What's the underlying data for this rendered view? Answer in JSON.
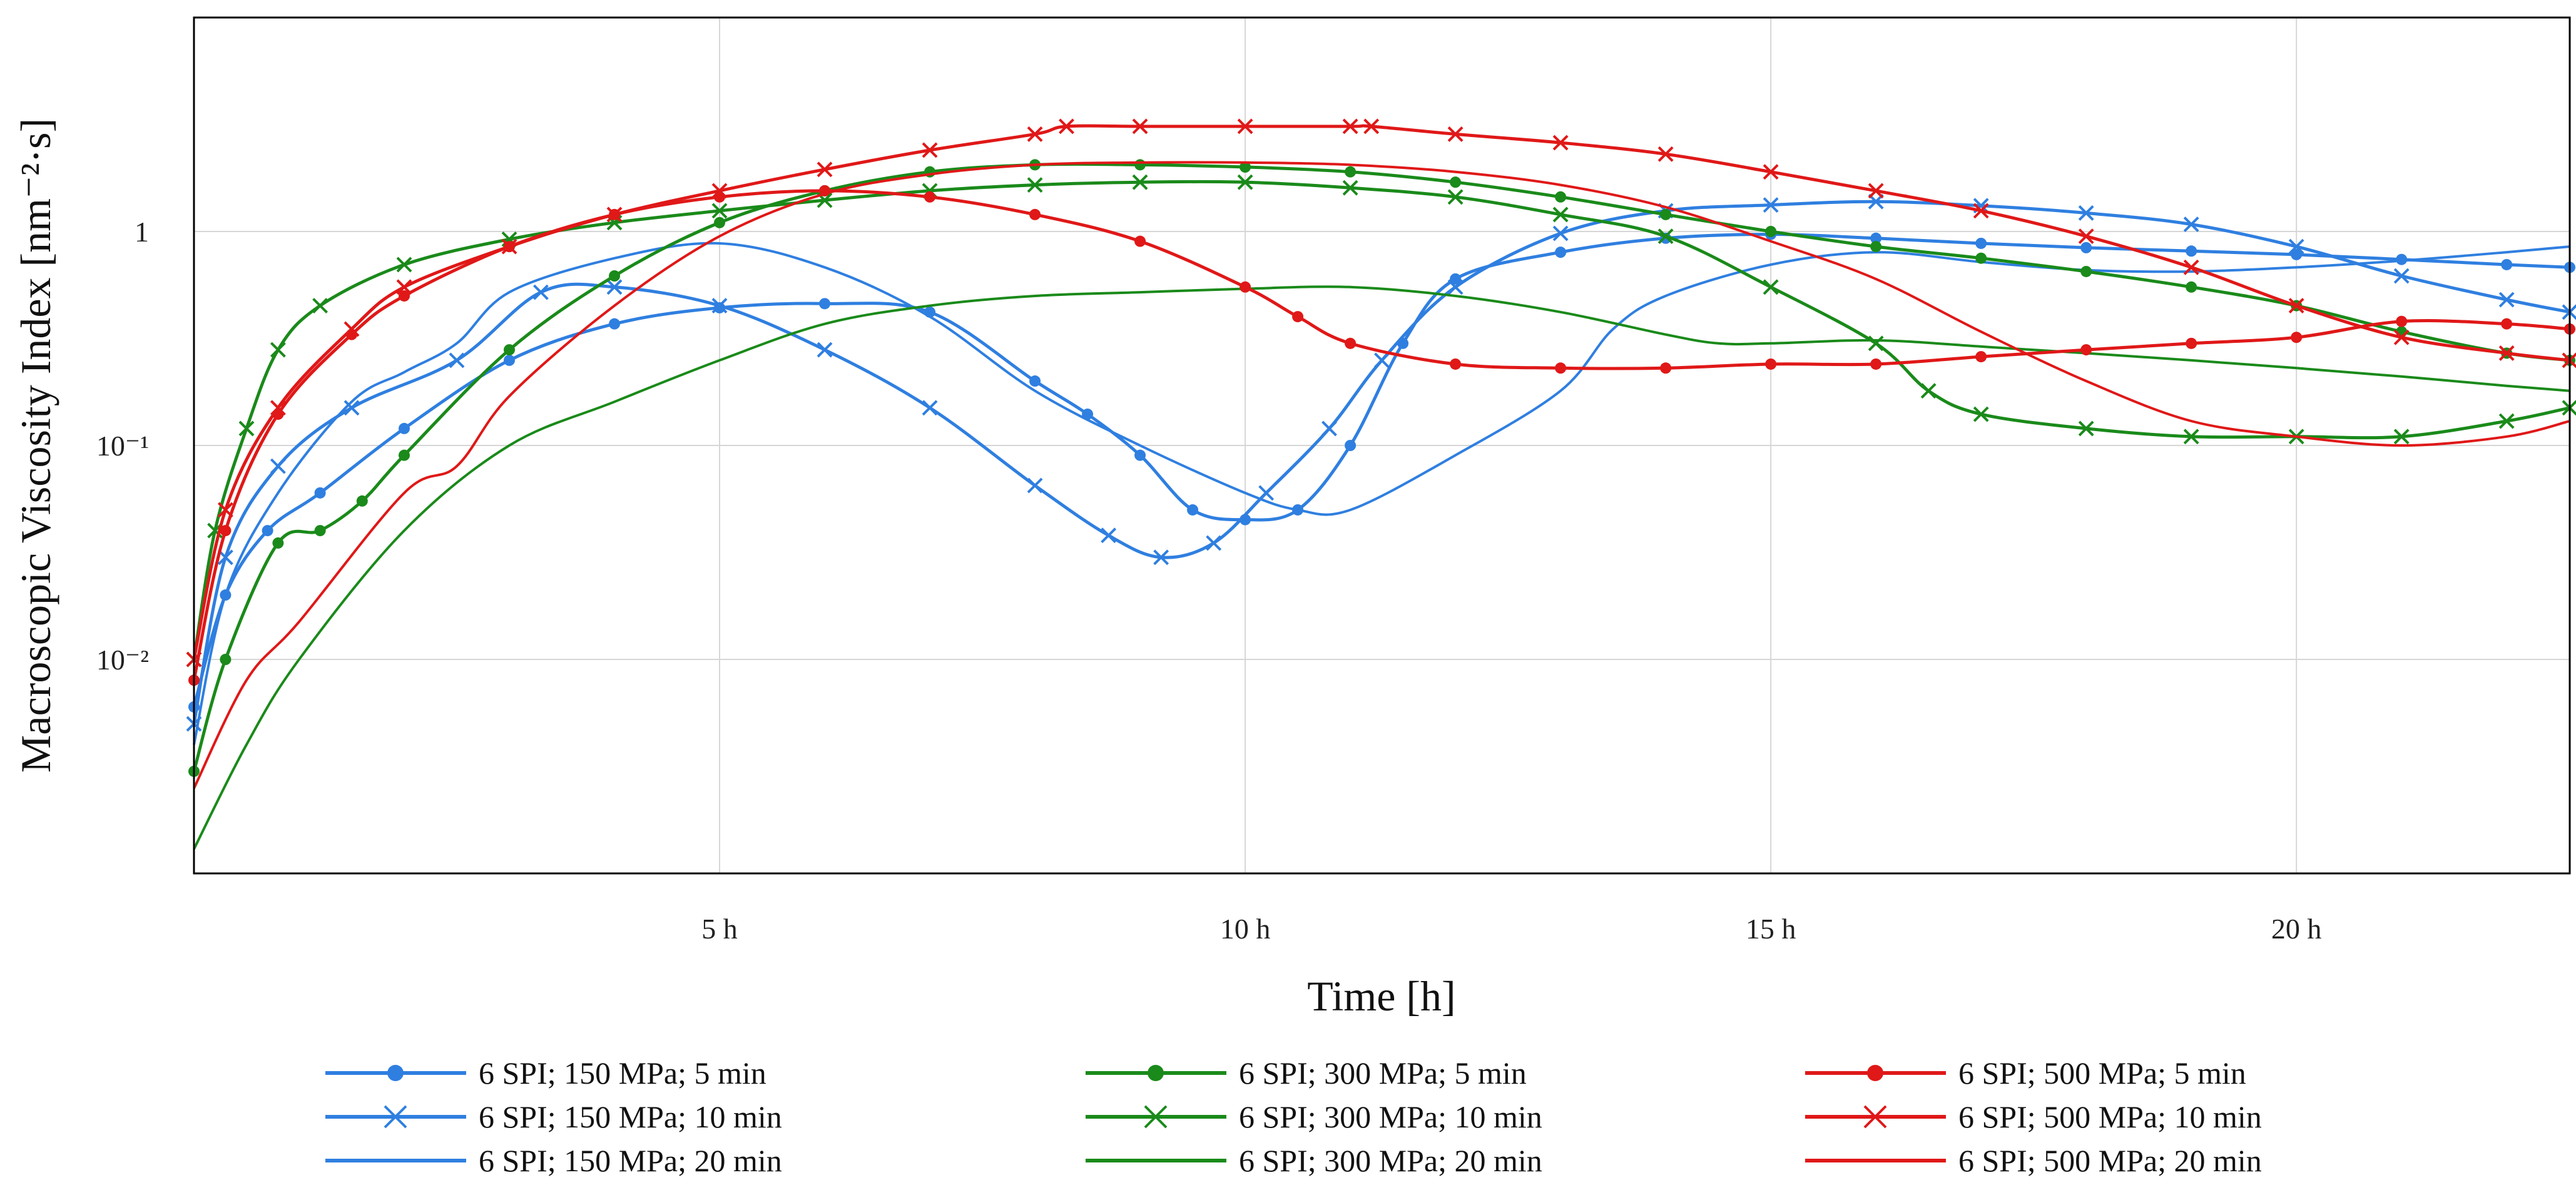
{
  "chart_data": {
    "type": "line",
    "title": "",
    "xlabel": "Time [h]",
    "ylabel": "Macroscopic Viscosity Index [nm⁻²·s]",
    "x_tick_labels": [
      "5 h",
      "10 h",
      "15 h",
      "20 h"
    ],
    "x_ticks": [
      5,
      10,
      15,
      20
    ],
    "y_tick_labels": [
      "1",
      "10⁻¹",
      "10⁻²"
    ],
    "y_ticks": [
      1,
      0.1,
      0.01
    ],
    "xlim": [
      0,
      22.6
    ],
    "ylim": [
      0.001,
      10
    ],
    "y_scale": "log",
    "grid": true,
    "legend_position": "bottom",
    "colors": {
      "blue": "#2f7fe0",
      "green": "#1a8a1a",
      "red": "#e01818",
      "grid": "#d6d6d6",
      "frame": "#000000"
    },
    "series": [
      {
        "name": "6 SPI; 150 MPa; 5 min",
        "color": "#2f7fe0",
        "marker": "dot",
        "x": [
          0,
          0.3,
          0.7,
          1.2,
          2,
          3,
          4,
          5,
          6,
          7,
          8,
          8.5,
          9,
          9.5,
          10,
          10.5,
          11,
          11.5,
          12,
          13,
          14,
          15,
          16,
          17,
          18,
          19,
          20,
          21,
          22,
          22.6
        ],
        "y": [
          0.006,
          0.02,
          0.04,
          0.06,
          0.12,
          0.25,
          0.37,
          0.44,
          0.46,
          0.42,
          0.2,
          0.14,
          0.09,
          0.05,
          0.045,
          0.05,
          0.1,
          0.3,
          0.6,
          0.8,
          0.93,
          0.97,
          0.93,
          0.88,
          0.84,
          0.81,
          0.78,
          0.74,
          0.7,
          0.68
        ]
      },
      {
        "name": "6 SPI; 150 MPa; 10 min",
        "color": "#2f7fe0",
        "marker": "x",
        "x": [
          0,
          0.3,
          0.8,
          1.5,
          2.5,
          3.3,
          4,
          5,
          6,
          7,
          8,
          8.7,
          9.2,
          9.7,
          10.2,
          10.8,
          11.3,
          12,
          13,
          14,
          15,
          16,
          17,
          18,
          19,
          20,
          21,
          22,
          22.6
        ],
        "y": [
          0.005,
          0.03,
          0.08,
          0.15,
          0.25,
          0.52,
          0.55,
          0.45,
          0.28,
          0.15,
          0.065,
          0.038,
          0.03,
          0.035,
          0.06,
          0.12,
          0.25,
          0.55,
          0.98,
          1.25,
          1.33,
          1.38,
          1.32,
          1.22,
          1.08,
          0.85,
          0.62,
          0.48,
          0.42
        ]
      },
      {
        "name": "6 SPI; 150 MPa; 20 min",
        "color": "#2f7fe0",
        "marker": "none",
        "x": [
          0,
          0.3,
          0.8,
          1.5,
          2,
          2.5,
          3,
          4,
          5,
          6,
          7,
          8,
          9,
          10,
          10.5,
          11,
          12,
          13,
          13.5,
          14,
          15,
          16,
          17,
          18,
          19,
          20,
          21,
          22,
          22.6
        ],
        "y": [
          0.004,
          0.02,
          0.06,
          0.16,
          0.22,
          0.3,
          0.52,
          0.75,
          0.88,
          0.68,
          0.4,
          0.18,
          0.1,
          0.06,
          0.05,
          0.05,
          0.09,
          0.18,
          0.35,
          0.5,
          0.7,
          0.8,
          0.72,
          0.66,
          0.65,
          0.68,
          0.73,
          0.8,
          0.85
        ]
      },
      {
        "name": "6 SPI; 300 MPa; 5 min",
        "color": "#1a8a1a",
        "marker": "dot",
        "x": [
          0,
          0.3,
          0.8,
          1.2,
          1.6,
          2,
          3,
          4,
          5,
          6,
          7,
          8,
          9,
          10,
          11,
          12,
          13,
          14,
          15,
          16,
          17,
          18,
          19,
          20,
          21,
          22,
          22.6
        ],
        "y": [
          0.003,
          0.01,
          0.035,
          0.04,
          0.055,
          0.09,
          0.28,
          0.62,
          1.1,
          1.55,
          1.9,
          2.05,
          2.05,
          2.0,
          1.9,
          1.7,
          1.45,
          1.2,
          1.0,
          0.85,
          0.75,
          0.65,
          0.55,
          0.45,
          0.34,
          0.27,
          0.25
        ]
      },
      {
        "name": "6 SPI; 300 MPa; 10 min",
        "color": "#1a8a1a",
        "marker": "x",
        "x": [
          0,
          0.2,
          0.5,
          0.8,
          1.2,
          2,
          3,
          4,
          5,
          6,
          7,
          8,
          9,
          10,
          11,
          12,
          13,
          14,
          15,
          16,
          16.5,
          17,
          18,
          19,
          20,
          21,
          22,
          22.6
        ],
        "y": [
          0.01,
          0.04,
          0.12,
          0.28,
          0.45,
          0.7,
          0.92,
          1.1,
          1.25,
          1.4,
          1.55,
          1.65,
          1.7,
          1.7,
          1.6,
          1.45,
          1.2,
          0.95,
          0.55,
          0.3,
          0.18,
          0.14,
          0.12,
          0.11,
          0.11,
          0.11,
          0.13,
          0.15
        ]
      },
      {
        "name": "6 SPI; 300 MPa; 20 min",
        "color": "#1a8a1a",
        "marker": "none",
        "x": [
          0,
          0.5,
          1,
          2,
          3,
          4,
          5,
          6,
          7,
          8,
          9,
          10,
          11,
          12,
          13,
          14,
          14.5,
          15,
          16,
          17,
          18,
          19,
          20,
          21,
          22,
          22.6
        ],
        "y": [
          0.0013,
          0.004,
          0.01,
          0.04,
          0.1,
          0.16,
          0.25,
          0.37,
          0.45,
          0.5,
          0.52,
          0.54,
          0.55,
          0.5,
          0.42,
          0.33,
          0.3,
          0.3,
          0.31,
          0.29,
          0.27,
          0.25,
          0.23,
          0.21,
          0.19,
          0.18
        ]
      },
      {
        "name": "6 SPI; 500 MPa; 5 min",
        "color": "#e01818",
        "marker": "dot",
        "x": [
          0,
          0.3,
          0.8,
          1.5,
          2,
          3,
          4,
          5,
          6,
          7,
          8,
          9,
          10,
          10.5,
          11,
          12,
          13,
          14,
          15,
          16,
          17,
          18,
          19,
          20,
          21,
          22,
          22.6
        ],
        "y": [
          0.008,
          0.04,
          0.14,
          0.33,
          0.5,
          0.85,
          1.2,
          1.45,
          1.55,
          1.45,
          1.2,
          0.9,
          0.55,
          0.4,
          0.3,
          0.24,
          0.23,
          0.23,
          0.24,
          0.24,
          0.26,
          0.28,
          0.3,
          0.32,
          0.38,
          0.37,
          0.35
        ]
      },
      {
        "name": "6 SPI; 500 MPa; 10 min",
        "color": "#e01818",
        "marker": "x",
        "x": [
          0,
          0.3,
          0.8,
          1.5,
          2,
          3,
          4,
          5,
          6,
          7,
          8,
          8.3,
          9,
          10,
          11,
          11.2,
          12,
          13,
          14,
          15,
          16,
          17,
          18,
          19,
          20,
          21,
          22,
          22.6
        ],
        "y": [
          0.01,
          0.05,
          0.15,
          0.35,
          0.55,
          0.85,
          1.2,
          1.55,
          1.95,
          2.4,
          2.85,
          3.1,
          3.1,
          3.1,
          3.1,
          3.1,
          2.85,
          2.6,
          2.3,
          1.9,
          1.55,
          1.25,
          0.95,
          0.68,
          0.45,
          0.32,
          0.27,
          0.25
        ]
      },
      {
        "name": "6 SPI; 500 MPa; 20 min",
        "color": "#e01818",
        "marker": "none",
        "x": [
          0,
          0.5,
          1,
          2,
          2.5,
          3,
          4,
          5,
          6,
          7,
          8,
          9,
          10,
          11,
          12,
          13,
          14,
          15,
          16,
          17,
          18,
          19,
          20,
          21,
          22,
          22.6
        ],
        "y": [
          0.0025,
          0.008,
          0.015,
          0.06,
          0.08,
          0.17,
          0.45,
          0.95,
          1.5,
          1.85,
          2.05,
          2.1,
          2.1,
          2.05,
          1.9,
          1.65,
          1.3,
          0.9,
          0.6,
          0.34,
          0.2,
          0.13,
          0.11,
          0.1,
          0.11,
          0.13
        ]
      }
    ]
  }
}
